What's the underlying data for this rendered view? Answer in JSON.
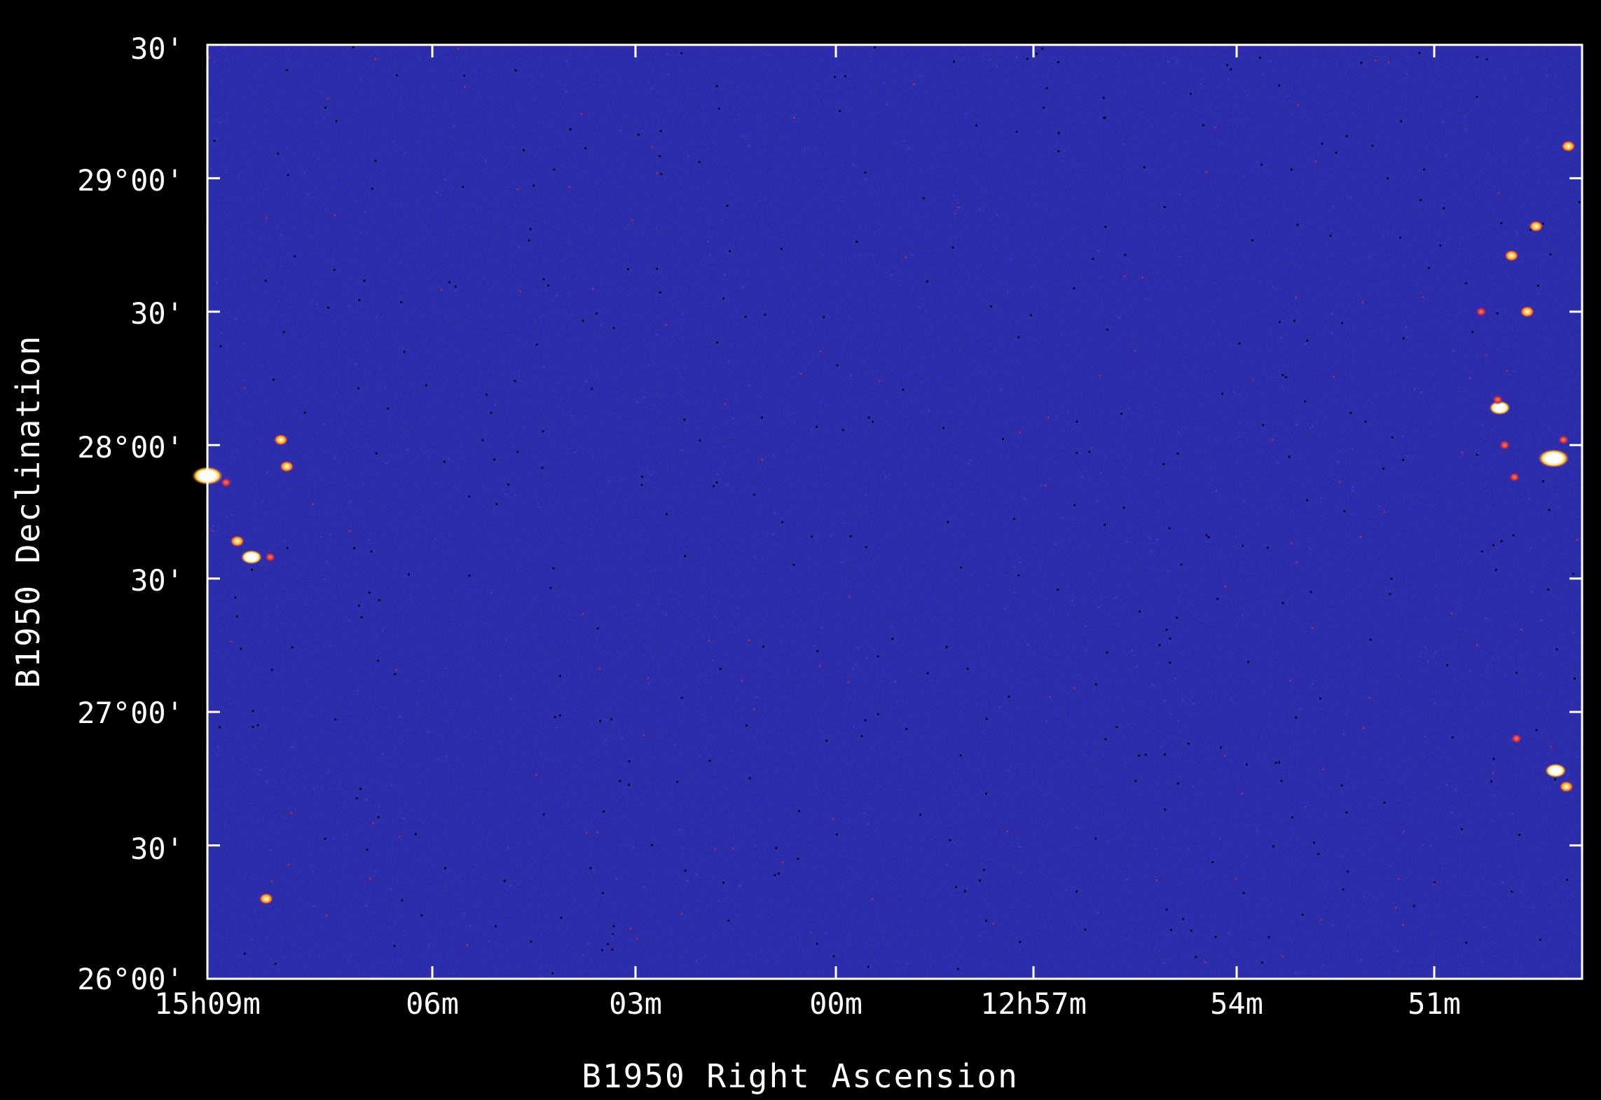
{
  "colors": {
    "background": "#000000",
    "sky": "#1b1b8c",
    "noise_dark": "#08083a",
    "noise_light": "#3a3acf",
    "axes": "#ffffff",
    "source_core": "#ffffff",
    "source_halo": "#ffb020",
    "faint_source": "#8b2a6b"
  },
  "x_axis": {
    "title": "B1950 Right Ascension",
    "ticks": [
      "15h09m",
      "06m",
      "03m",
      "00m",
      "12h57m",
      "54m",
      "51m"
    ]
  },
  "y_axis": {
    "title": "B1950 Declination",
    "ticks": [
      "26°00'",
      "30'",
      "27°00'",
      "30'",
      "28°00'",
      "30'",
      "29°00'",
      "30'"
    ]
  },
  "sources": [
    {
      "name": "source-1",
      "ra_min": 9.0,
      "dec_deg": 27.885,
      "brightness": "very-bright"
    },
    {
      "name": "source-2",
      "ra_min": 7.1,
      "dec_deg": 27.86,
      "brightness": "faint"
    },
    {
      "name": "source-3",
      "ra_min": 5.95,
      "dec_deg": 27.64,
      "brightness": "medium"
    },
    {
      "name": "source-4",
      "ra_min": 4.5,
      "dec_deg": 27.58,
      "brightness": "bright"
    },
    {
      "name": "source-5",
      "ra_min": 2.6,
      "dec_deg": 27.58,
      "brightness": "faint"
    },
    {
      "name": "source-6",
      "ra_min": 3.0,
      "dec_deg": 26.3,
      "brightness": "medium"
    },
    {
      "name": "source-7",
      "ra_min": 1.5,
      "dec_deg": 28.02,
      "brightness": "medium"
    },
    {
      "name": "source-8",
      "ra_min": 0.9,
      "dec_deg": 27.92,
      "brightness": "medium"
    },
    {
      "name": "source-9",
      "ra_min": 59.0,
      "dec_deg": 28.5,
      "brightness": "faint"
    },
    {
      "name": "source-10",
      "ra_min": 57.1,
      "dec_deg": 28.14,
      "brightness": "bright"
    },
    {
      "name": "source-11",
      "ra_min": 57.3,
      "dec_deg": 28.17,
      "brightness": "faint"
    },
    {
      "name": "source-12",
      "ra_min": 56.6,
      "dec_deg": 28.0,
      "brightness": "faint"
    },
    {
      "name": "source-13",
      "ra_min": 55.9,
      "dec_deg": 28.71,
      "brightness": "medium"
    },
    {
      "name": "source-14",
      "ra_min": 54.3,
      "dec_deg": 28.5,
      "brightness": "medium"
    },
    {
      "name": "source-15",
      "ra_min": 53.4,
      "dec_deg": 28.82,
      "brightness": "medium"
    },
    {
      "name": "source-16",
      "ra_min": 50.1,
      "dec_deg": 29.12,
      "brightness": "medium"
    },
    {
      "name": "source-17",
      "ra_min": 51.6,
      "dec_deg": 27.95,
      "brightness": "very-bright"
    },
    {
      "name": "source-18",
      "ra_min": 50.6,
      "dec_deg": 28.02,
      "brightness": "faint"
    },
    {
      "name": "source-19",
      "ra_min": 51.4,
      "dec_deg": 26.78,
      "brightness": "bright"
    },
    {
      "name": "source-20",
      "ra_min": 50.3,
      "dec_deg": 26.72,
      "brightness": "medium"
    },
    {
      "name": "source-21",
      "ra_min": 55.6,
      "dec_deg": 27.88,
      "brightness": "faint"
    },
    {
      "name": "source-22",
      "ra_min": 55.4,
      "dec_deg": 26.9,
      "brightness": "faint"
    }
  ]
}
